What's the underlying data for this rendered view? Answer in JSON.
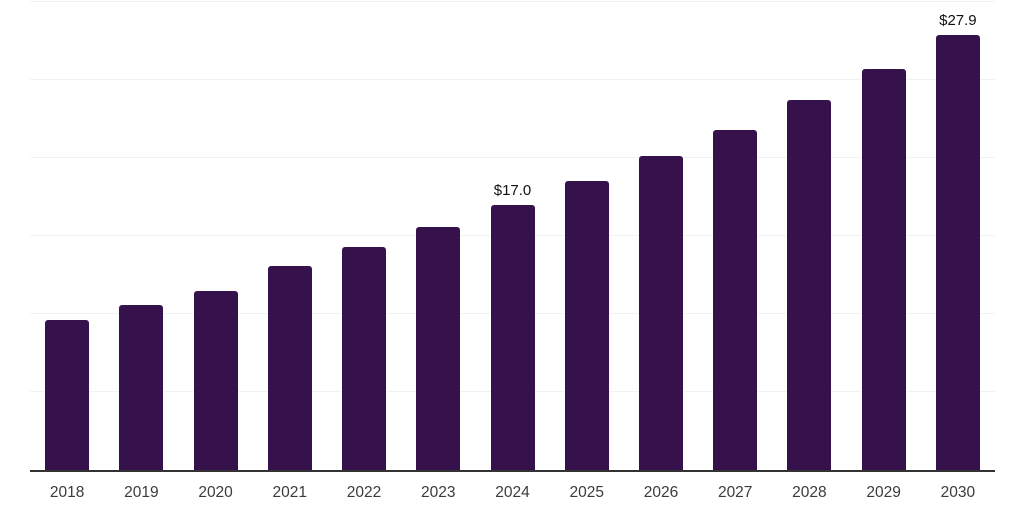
{
  "chart_data": {
    "type": "bar",
    "title": "",
    "xlabel": "",
    "ylabel": "",
    "categories": [
      "2018",
      "2019",
      "2020",
      "2021",
      "2022",
      "2023",
      "2024",
      "2025",
      "2026",
      "2027",
      "2028",
      "2029",
      "2030"
    ],
    "values": [
      9.6,
      10.6,
      11.5,
      13.1,
      14.3,
      15.6,
      17.0,
      18.5,
      20.1,
      21.8,
      23.7,
      25.7,
      27.9
    ],
    "value_labels": {
      "2024": "$17.0",
      "2030": "$27.9"
    },
    "ylim": [
      0,
      30
    ],
    "gridline_step": 5,
    "grid": true,
    "legend": "none",
    "y_axis_labels_visible": false,
    "colors": {
      "bar": "#36124D",
      "axis_line": "#333333",
      "gridline": "#f2f2f2",
      "tick_label": "#3b3b3b",
      "value_label": "#111111",
      "background": "#ffffff"
    }
  }
}
